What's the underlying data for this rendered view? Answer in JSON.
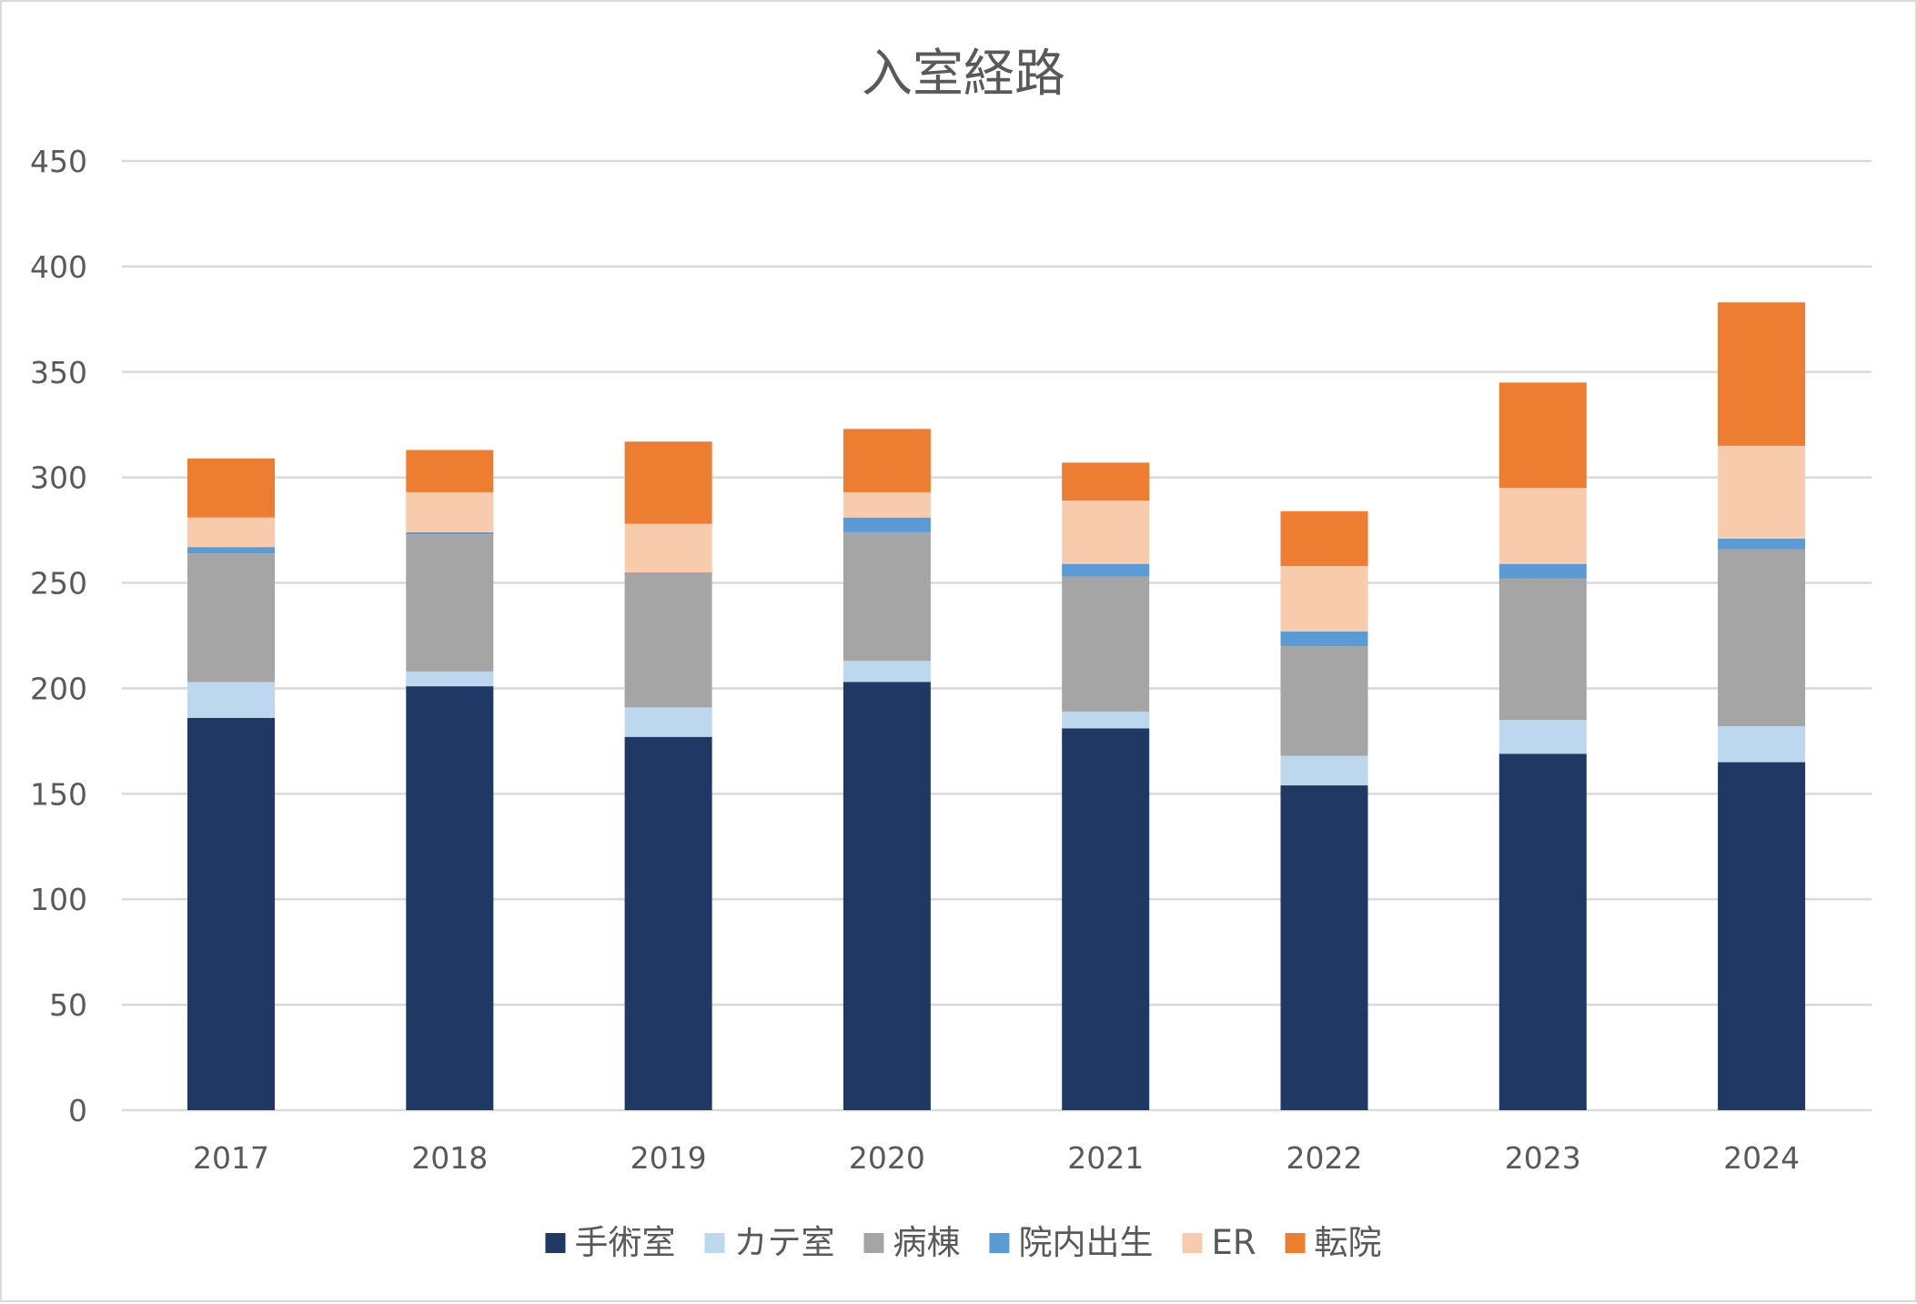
{
  "chart_data": {
    "type": "bar",
    "stacked": true,
    "title": "入室経路",
    "categories": [
      "2017",
      "2018",
      "2019",
      "2020",
      "2021",
      "2022",
      "2023",
      "2024"
    ],
    "series": [
      {
        "name": "手術室",
        "color": "#203864",
        "values": [
          186,
          201,
          177,
          203,
          181,
          154,
          169,
          165
        ]
      },
      {
        "name": "カテ室",
        "color": "#bdd7ee",
        "values": [
          17,
          7,
          14,
          10,
          8,
          14,
          16,
          17
        ]
      },
      {
        "name": "病棟",
        "color": "#a5a5a5",
        "values": [
          61,
          65,
          64,
          61,
          64,
          52,
          67,
          84
        ]
      },
      {
        "name": "院内出生",
        "color": "#5b9bd5",
        "values": [
          3,
          1,
          0,
          7,
          6,
          7,
          7,
          5
        ]
      },
      {
        "name": "ER",
        "color": "#f8cbad",
        "values": [
          14,
          19,
          23,
          12,
          30,
          31,
          36,
          44
        ]
      },
      {
        "name": "転院",
        "color": "#ed7d31",
        "values": [
          28,
          20,
          39,
          30,
          18,
          26,
          50,
          68
        ]
      }
    ],
    "ylim": [
      0,
      450
    ],
    "yticks": [
      0,
      50,
      100,
      150,
      200,
      250,
      300,
      350,
      400,
      450
    ],
    "xlabel": "",
    "ylabel": "",
    "grid": true,
    "legend": "bottom"
  }
}
